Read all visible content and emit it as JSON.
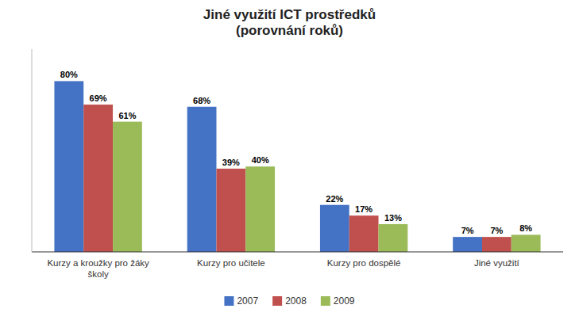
{
  "chart_data": {
    "type": "bar",
    "title": "Jiné využití ICT prostředků\n(porovnání roků)",
    "categories": [
      "Kurzy a kroužky pro žáky školy",
      "Kurzy pro učitele",
      "Kurzy pro dospělé",
      "Jiné využití"
    ],
    "series": [
      {
        "name": "2007",
        "color": "#4472C4",
        "values": [
          80,
          68,
          22,
          7
        ],
        "value_labels": [
          "80%",
          "68%",
          "22%",
          "7%"
        ]
      },
      {
        "name": "2008",
        "color": "#C0504D",
        "values": [
          69,
          39,
          17,
          7
        ],
        "value_labels": [
          "69%",
          "39%",
          "17%",
          "7%"
        ]
      },
      {
        "name": "2009",
        "color": "#9BBB59",
        "values": [
          61,
          40,
          13,
          8
        ],
        "value_labels": [
          "61%",
          "40%",
          "13%",
          "8%"
        ]
      }
    ],
    "ylim": [
      0,
      95
    ],
    "yticks": [],
    "grid": false,
    "legend": "bottom",
    "data_labels": true,
    "tick_labels": "x"
  }
}
